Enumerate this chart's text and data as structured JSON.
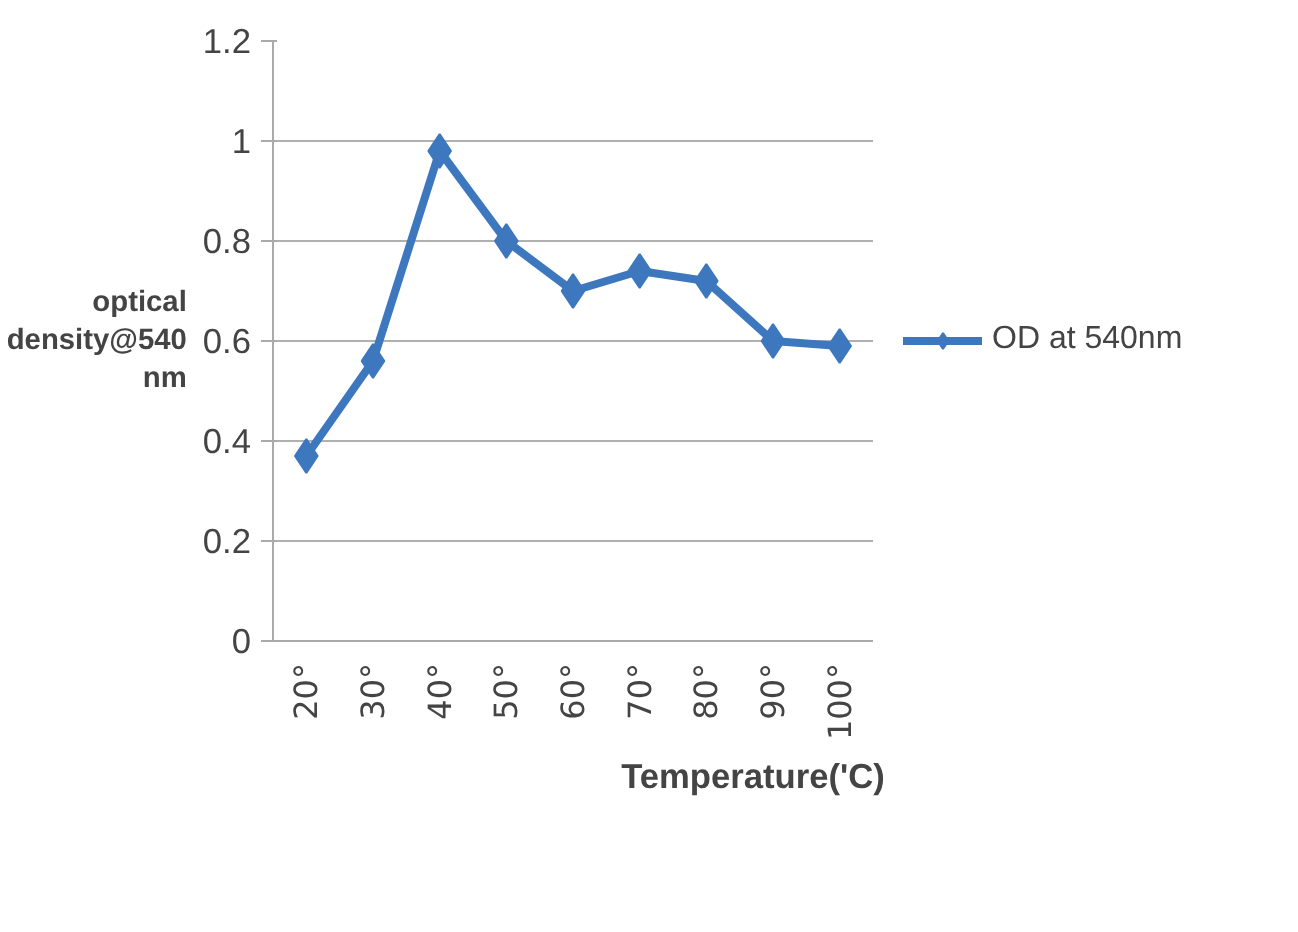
{
  "chart_data": {
    "type": "line",
    "xlabel": "Temperature('C)",
    "ylabel": "optical\ndensity@540\nnm",
    "categories": [
      "20°",
      "30°",
      "40°",
      "50°",
      "60°",
      "70°",
      "80°",
      "90°",
      "100°"
    ],
    "series": [
      {
        "name": "OD at 540nm",
        "color": "#3d78bf",
        "values": [
          0.37,
          0.56,
          0.98,
          0.8,
          0.7,
          0.74,
          0.72,
          0.6,
          0.59
        ]
      }
    ],
    "ylim": [
      0,
      1.2
    ],
    "yticks": [
      0,
      0.2,
      0.4,
      0.6,
      0.8,
      1,
      1.2
    ],
    "grid": "y",
    "legend": "right",
    "marker": "diamond",
    "line_style": "solid"
  }
}
